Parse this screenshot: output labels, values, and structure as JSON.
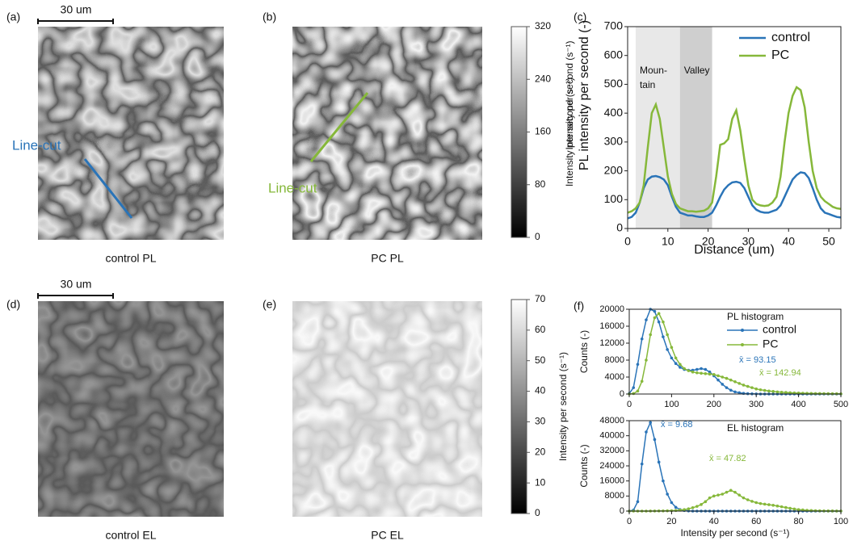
{
  "images": [
    {
      "label": "(a)",
      "caption": "control PL",
      "scale_bar": "30 um",
      "line_cut": "Line-cut"
    },
    {
      "label": "(b)",
      "caption": "PC PL",
      "line_cut": "Line-cut"
    },
    {
      "label": "(d)",
      "caption": "control EL",
      "scale_bar": "30 um"
    },
    {
      "label": "(e)",
      "caption": "PC EL"
    }
  ],
  "chart_data": [
    {
      "type": "line",
      "panel": "(c)",
      "xlabel": "Distance (um)",
      "ylabel": [
        "Intensity per second (s⁻¹)",
        "PL intensity per second (-)"
      ],
      "xlim": [
        0,
        53
      ],
      "xticks": [
        0,
        10,
        20,
        30,
        40,
        50
      ],
      "ylim": [
        0,
        700
      ],
      "yticks": [
        0,
        100,
        200,
        300,
        400,
        500,
        600,
        700
      ],
      "regions": [
        {
          "label": [
            "Moun-",
            "tain"
          ],
          "range": [
            2,
            13
          ],
          "color": "#e8e8e8"
        },
        {
          "label": [
            "Valley"
          ],
          "range": [
            13,
            21
          ],
          "color": "#cfcfcf"
        }
      ],
      "x": [
        0,
        1,
        2,
        3,
        4,
        5,
        6,
        7,
        8,
        9,
        10,
        11,
        12,
        13,
        14,
        15,
        16,
        17,
        18,
        19,
        20,
        21,
        22,
        23,
        24,
        25,
        26,
        27,
        28,
        29,
        30,
        31,
        32,
        33,
        34,
        35,
        36,
        37,
        38,
        39,
        40,
        41,
        42,
        43,
        44,
        45,
        46,
        47,
        48,
        49,
        50,
        51,
        52,
        53
      ],
      "series": [
        {
          "name": "control",
          "color": "#2a74b8",
          "values": [
            35,
            40,
            55,
            90,
            140,
            170,
            180,
            182,
            178,
            170,
            150,
            110,
            75,
            55,
            50,
            45,
            45,
            42,
            40,
            40,
            45,
            55,
            80,
            110,
            135,
            150,
            160,
            162,
            158,
            140,
            110,
            80,
            65,
            58,
            55,
            55,
            60,
            65,
            80,
            110,
            140,
            170,
            185,
            195,
            192,
            175,
            140,
            100,
            70,
            55,
            50,
            45,
            40,
            38
          ]
        },
        {
          "name": "PC",
          "color": "#86b83a",
          "values": [
            55,
            60,
            70,
            90,
            150,
            280,
            400,
            430,
            380,
            280,
            180,
            120,
            85,
            70,
            65,
            60,
            60,
            58,
            60,
            62,
            70,
            90,
            180,
            290,
            295,
            310,
            380,
            410,
            340,
            240,
            150,
            100,
            85,
            80,
            78,
            80,
            90,
            110,
            180,
            300,
            400,
            460,
            490,
            480,
            420,
            300,
            200,
            140,
            110,
            95,
            85,
            75,
            70,
            68
          ]
        }
      ]
    },
    {
      "type": "line",
      "panel": "(f)",
      "markers": true,
      "title": "PL histogram",
      "ylabel": "Counts (-)",
      "xlim": [
        0,
        500
      ],
      "xticks": [
        0,
        100,
        200,
        300,
        400,
        500
      ],
      "ylim": [
        0,
        20000
      ],
      "yticks": [
        0,
        4000,
        8000,
        12000,
        16000,
        20000
      ],
      "annotations": [
        "x̄ = 93.15",
        "x̄ = 142.94"
      ],
      "x": [
        0,
        10,
        20,
        30,
        40,
        50,
        60,
        70,
        80,
        90,
        100,
        110,
        120,
        130,
        140,
        150,
        160,
        170,
        180,
        190,
        200,
        210,
        220,
        230,
        240,
        250,
        260,
        270,
        280,
        290,
        300,
        310,
        320,
        330,
        340,
        350,
        360,
        370,
        380,
        390,
        400,
        410,
        420,
        430,
        440,
        450,
        460,
        470,
        480,
        490,
        500
      ],
      "series": [
        {
          "name": "control",
          "color": "#2a74b8",
          "values": [
            100,
            1500,
            7000,
            13000,
            17500,
            20000,
            19500,
            17000,
            13500,
            10500,
            8500,
            7200,
            6300,
            5800,
            5600,
            5600,
            5800,
            6000,
            5800,
            5200,
            4300,
            3300,
            2300,
            1500,
            900,
            500,
            300,
            150,
            80,
            40,
            20,
            0,
            0,
            0,
            0,
            0,
            0,
            0,
            0,
            0,
            0,
            0,
            0,
            0,
            0,
            0,
            0,
            0,
            0,
            0,
            0
          ]
        },
        {
          "name": "PC",
          "color": "#86b83a",
          "values": [
            0,
            100,
            700,
            3000,
            8000,
            14000,
            18000,
            19000,
            17000,
            14000,
            11000,
            8500,
            7000,
            6000,
            5500,
            5200,
            5000,
            4900,
            4800,
            4700,
            4600,
            4300,
            4000,
            3700,
            3300,
            2900,
            2500,
            2100,
            1800,
            1500,
            1200,
            1000,
            850,
            700,
            600,
            500,
            420,
            360,
            300,
            250,
            220,
            190,
            160,
            140,
            120,
            100,
            90,
            80,
            70,
            60,
            50
          ]
        }
      ]
    },
    {
      "type": "line",
      "markers": true,
      "title": "EL histogram",
      "ylabel": "Counts (-)",
      "xlabel": "Intensity per second (s⁻¹)",
      "xlim": [
        0,
        100
      ],
      "xticks": [
        0,
        20,
        40,
        60,
        80,
        100
      ],
      "ylim": [
        0,
        48000
      ],
      "yticks": [
        0,
        8000,
        16000,
        24000,
        32000,
        40000,
        48000
      ],
      "annotations": [
        "x̄ = 9.68",
        "x̄ = 47.82"
      ],
      "x": [
        0,
        2,
        4,
        6,
        8,
        10,
        12,
        14,
        16,
        18,
        20,
        22,
        24,
        26,
        28,
        30,
        32,
        34,
        36,
        38,
        40,
        42,
        44,
        46,
        48,
        50,
        52,
        54,
        56,
        58,
        60,
        62,
        64,
        66,
        68,
        70,
        72,
        74,
        76,
        78,
        80,
        82,
        84,
        86,
        88,
        90,
        92,
        94,
        96,
        98,
        100
      ],
      "series": [
        {
          "color": "#2a74b8",
          "values": [
            0,
            500,
            5000,
            25000,
            42000,
            47000,
            38000,
            26000,
            16000,
            9000,
            4500,
            2000,
            800,
            300,
            100,
            0,
            0,
            0,
            0,
            0,
            0,
            0,
            0,
            0,
            0,
            0,
            0,
            0,
            0,
            0,
            0,
            0,
            0,
            0,
            0,
            0,
            0,
            0,
            0,
            0,
            0,
            0,
            0,
            0,
            0,
            0,
            0,
            0,
            0,
            0,
            0
          ]
        },
        {
          "color": "#86b83a",
          "values": [
            0,
            0,
            0,
            0,
            0,
            20,
            40,
            60,
            100,
            150,
            200,
            300,
            500,
            800,
            1200,
            1800,
            2500,
            3500,
            5000,
            7000,
            8000,
            8500,
            9000,
            10000,
            11000,
            10000,
            8500,
            7000,
            6000,
            5200,
            4500,
            4000,
            3700,
            3400,
            3100,
            2700,
            2300,
            1900,
            1500,
            1100,
            800,
            600,
            400,
            300,
            200,
            150,
            100,
            80,
            60,
            40,
            30
          ]
        }
      ]
    },
    {
      "type": "colorbar",
      "ylabel": "Intensity per second (s⁻¹)",
      "ylim": [
        0,
        320
      ],
      "yticks": [
        0,
        80,
        160,
        240,
        320
      ]
    },
    {
      "type": "colorbar",
      "ylabel": "Intensity per second (s⁻¹)",
      "ylim": [
        0,
        70
      ],
      "yticks": [
        0,
        10,
        20,
        30,
        40,
        50,
        60,
        70
      ]
    }
  ]
}
